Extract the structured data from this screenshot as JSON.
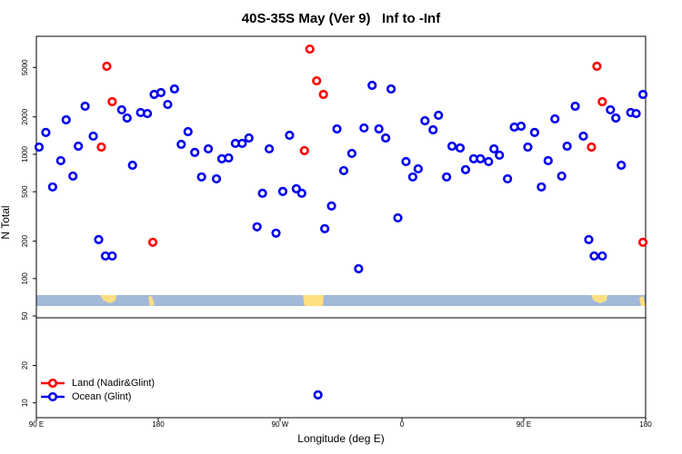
{
  "chart_data": {
    "type": "scatter",
    "title": "40S-35S May (Ver 9)   Inf to -Inf",
    "x_label": "Longitude (deg E)",
    "y_label": "N Total",
    "xlim": [
      90,
      540
    ],
    "xticks": [
      {
        "value": 90,
        "label": "90 E"
      },
      180,
      {
        "value": 270,
        "label": "90 W"
      },
      {
        "value": 360,
        "label": "0"
      },
      {
        "value": 450,
        "label": "90 E"
      },
      {
        "value": 540,
        "label": "180"
      }
    ],
    "ylim": [
      7.6,
      8900
    ],
    "y_log": true,
    "yticks": [
      10,
      20,
      50,
      100,
      200,
      500,
      1000,
      2000,
      5000
    ],
    "legend": "bottom-left",
    "series": [
      {
        "name": "Land (Nadir&Glint)",
        "color": "#ff0000",
        "x": [
          138,
          142,
          146,
          176,
          288,
          292,
          297,
          302,
          500,
          504,
          508,
          538
        ],
        "values": [
          1143,
          5106,
          2651,
          196,
          1070,
          7026,
          3899,
          3034,
          1143,
          5106,
          2651,
          196
        ]
      },
      {
        "name": "Ocean (Glint)",
        "color": "#0000ee",
        "x": [
          92,
          97,
          102,
          108,
          112,
          117,
          121,
          126,
          132,
          136,
          141,
          146,
          153,
          157,
          161,
          167,
          172,
          177,
          182,
          187,
          192,
          197,
          202,
          207,
          212,
          217,
          223,
          227,
          232,
          237,
          242,
          247,
          253,
          257,
          262,
          267,
          272,
          277,
          282,
          286,
          298,
          303,
          308,
          312,
          317,
          323,
          328,
          332,
          338,
          343,
          348,
          352,
          357,
          363,
          368,
          372,
          377,
          383,
          387,
          393,
          397,
          403,
          407,
          413,
          418,
          424,
          428,
          432,
          438,
          443,
          448,
          453,
          458,
          463,
          468,
          473,
          478,
          482,
          488,
          494,
          498,
          502,
          508,
          514,
          518,
          522,
          529,
          533,
          538
        ],
        "values": [
          1143,
          1500,
          546,
          889,
          1894,
          668,
          1163,
          2437,
          1400,
          206,
          152,
          152,
          2280,
          1959,
          817,
          2168,
          2128,
          3034,
          3135,
          2518,
          3357,
          1203,
          1522,
          1035,
          657,
          1106,
          635,
          920,
          935,
          1224,
          1224,
          1353,
          261,
          486,
          1106,
          232,
          502,
          1423,
          528,
          486,
          11.6,
          252,
          384,
          1600,
          739,
          1017,
          120,
          1629,
          3589,
          1600,
          1353,
          3357,
          308,
          874,
          657,
          764,
          1862,
          1574,
          2061,
          657,
          1163,
          1125,
          752,
          920,
          920,
          874,
          1106,
          984,
          635,
          1656,
          1684,
          1143,
          1500,
          546,
          889,
          1927,
          668,
          1163,
          2437,
          1400,
          206,
          152,
          152,
          2280,
          1959,
          817,
          2168,
          2128,
          3034
        ]
      }
    ]
  }
}
